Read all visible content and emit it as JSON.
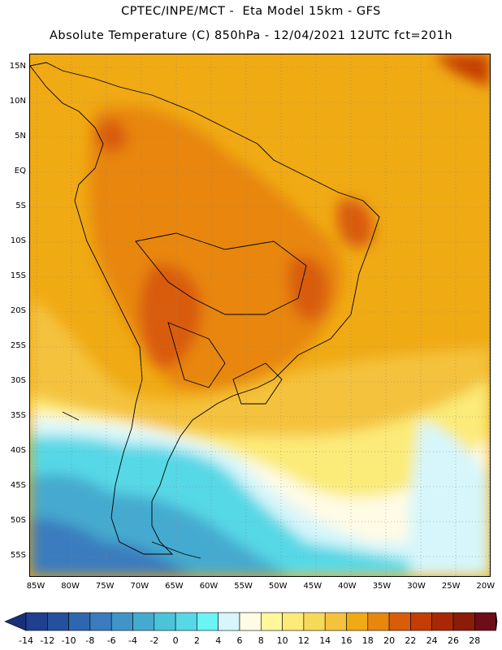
{
  "title": {
    "line1": "CPTEC/INPE/MCT -  Eta Model 15km - GFS",
    "line2": "Absolute Temperature (C) 850hPa - 12/04/2021 12UTC fct=201h"
  },
  "map": {
    "latitude_labels": [
      "15N",
      "10N",
      "5N",
      "EQ",
      "5S",
      "10S",
      "15S",
      "20S",
      "25S",
      "30S",
      "35S",
      "40S",
      "45S",
      "50S",
      "55S"
    ],
    "longitude_labels": [
      "85W",
      "80W",
      "75W",
      "70W",
      "65W",
      "60W",
      "55W",
      "50W",
      "45W",
      "40W",
      "35W",
      "30W",
      "25W",
      "20W"
    ],
    "lat_range": [
      15,
      -55
    ],
    "lon_range": [
      -85,
      -20
    ]
  },
  "colorbar": {
    "labels": [
      "-14",
      "-12",
      "-10",
      "-8",
      "-6",
      "-4",
      "-2",
      "0",
      "2",
      "4",
      "6",
      "8",
      "10",
      "12",
      "14",
      "16",
      "18",
      "20",
      "22",
      "24",
      "26",
      "28"
    ],
    "colors": [
      "#1f3f8f",
      "#24509f",
      "#2e67b0",
      "#3a7cbe",
      "#3f95c8",
      "#45aacf",
      "#4bc4da",
      "#57d8e6",
      "#6af4f4",
      "#d6f6fb",
      "#fffbe5",
      "#fff79a",
      "#fbeb78",
      "#f7d95a",
      "#f4c23c",
      "#f0aa14",
      "#e8860e",
      "#d95c08",
      "#c43c06",
      "#a82806",
      "#8a1c08",
      "#6e0c18"
    ],
    "left_arrow_color": "#1a2f7a",
    "right_arrow_color": "#6b0020"
  }
}
